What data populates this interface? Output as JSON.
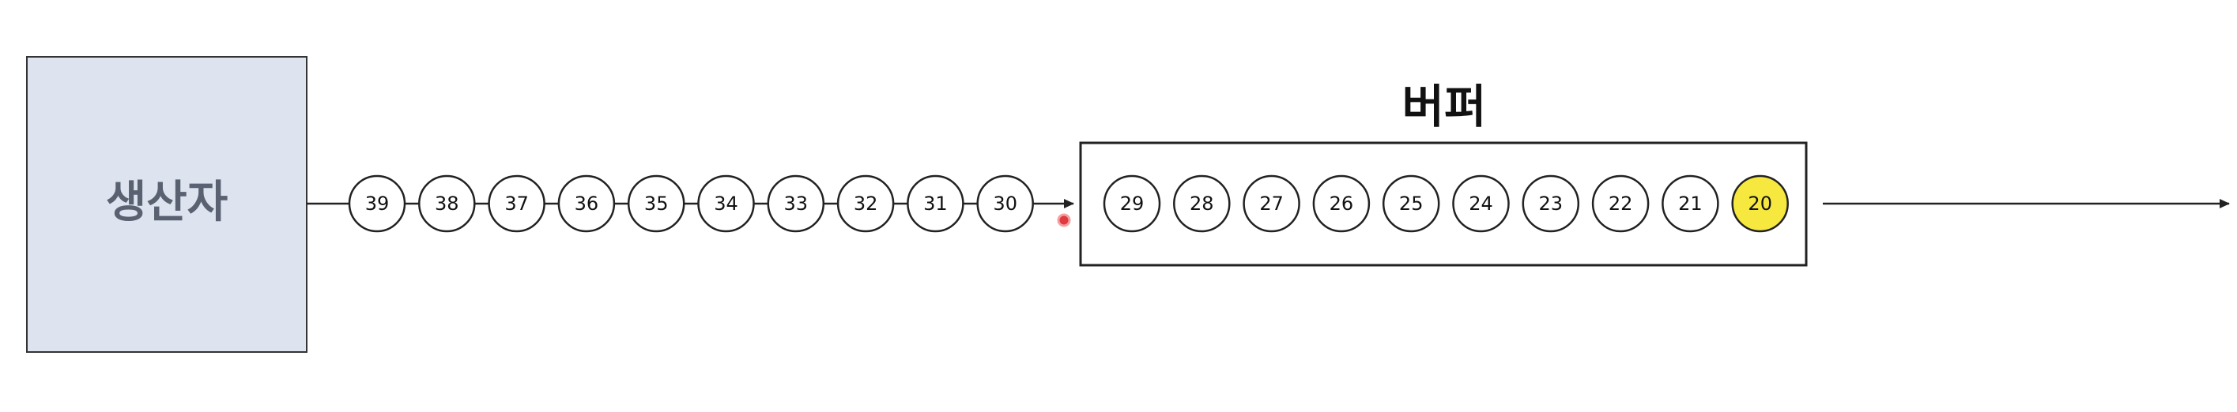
{
  "producer": {
    "label": "생산자"
  },
  "buffer": {
    "title": "버퍼"
  },
  "queue_items": [
    "39",
    "38",
    "37",
    "36",
    "35",
    "34",
    "33",
    "32",
    "31",
    "30"
  ],
  "buffer_items": [
    "29",
    "28",
    "27",
    "26",
    "25",
    "24",
    "23",
    "22",
    "21",
    "20"
  ],
  "highlighted_item": "20",
  "colors": {
    "producer_fill": "#dde4f0",
    "producer_text": "#5a6272",
    "highlight": "#f7e840",
    "line": "#222222",
    "cursor_dot": "#e0393e"
  }
}
